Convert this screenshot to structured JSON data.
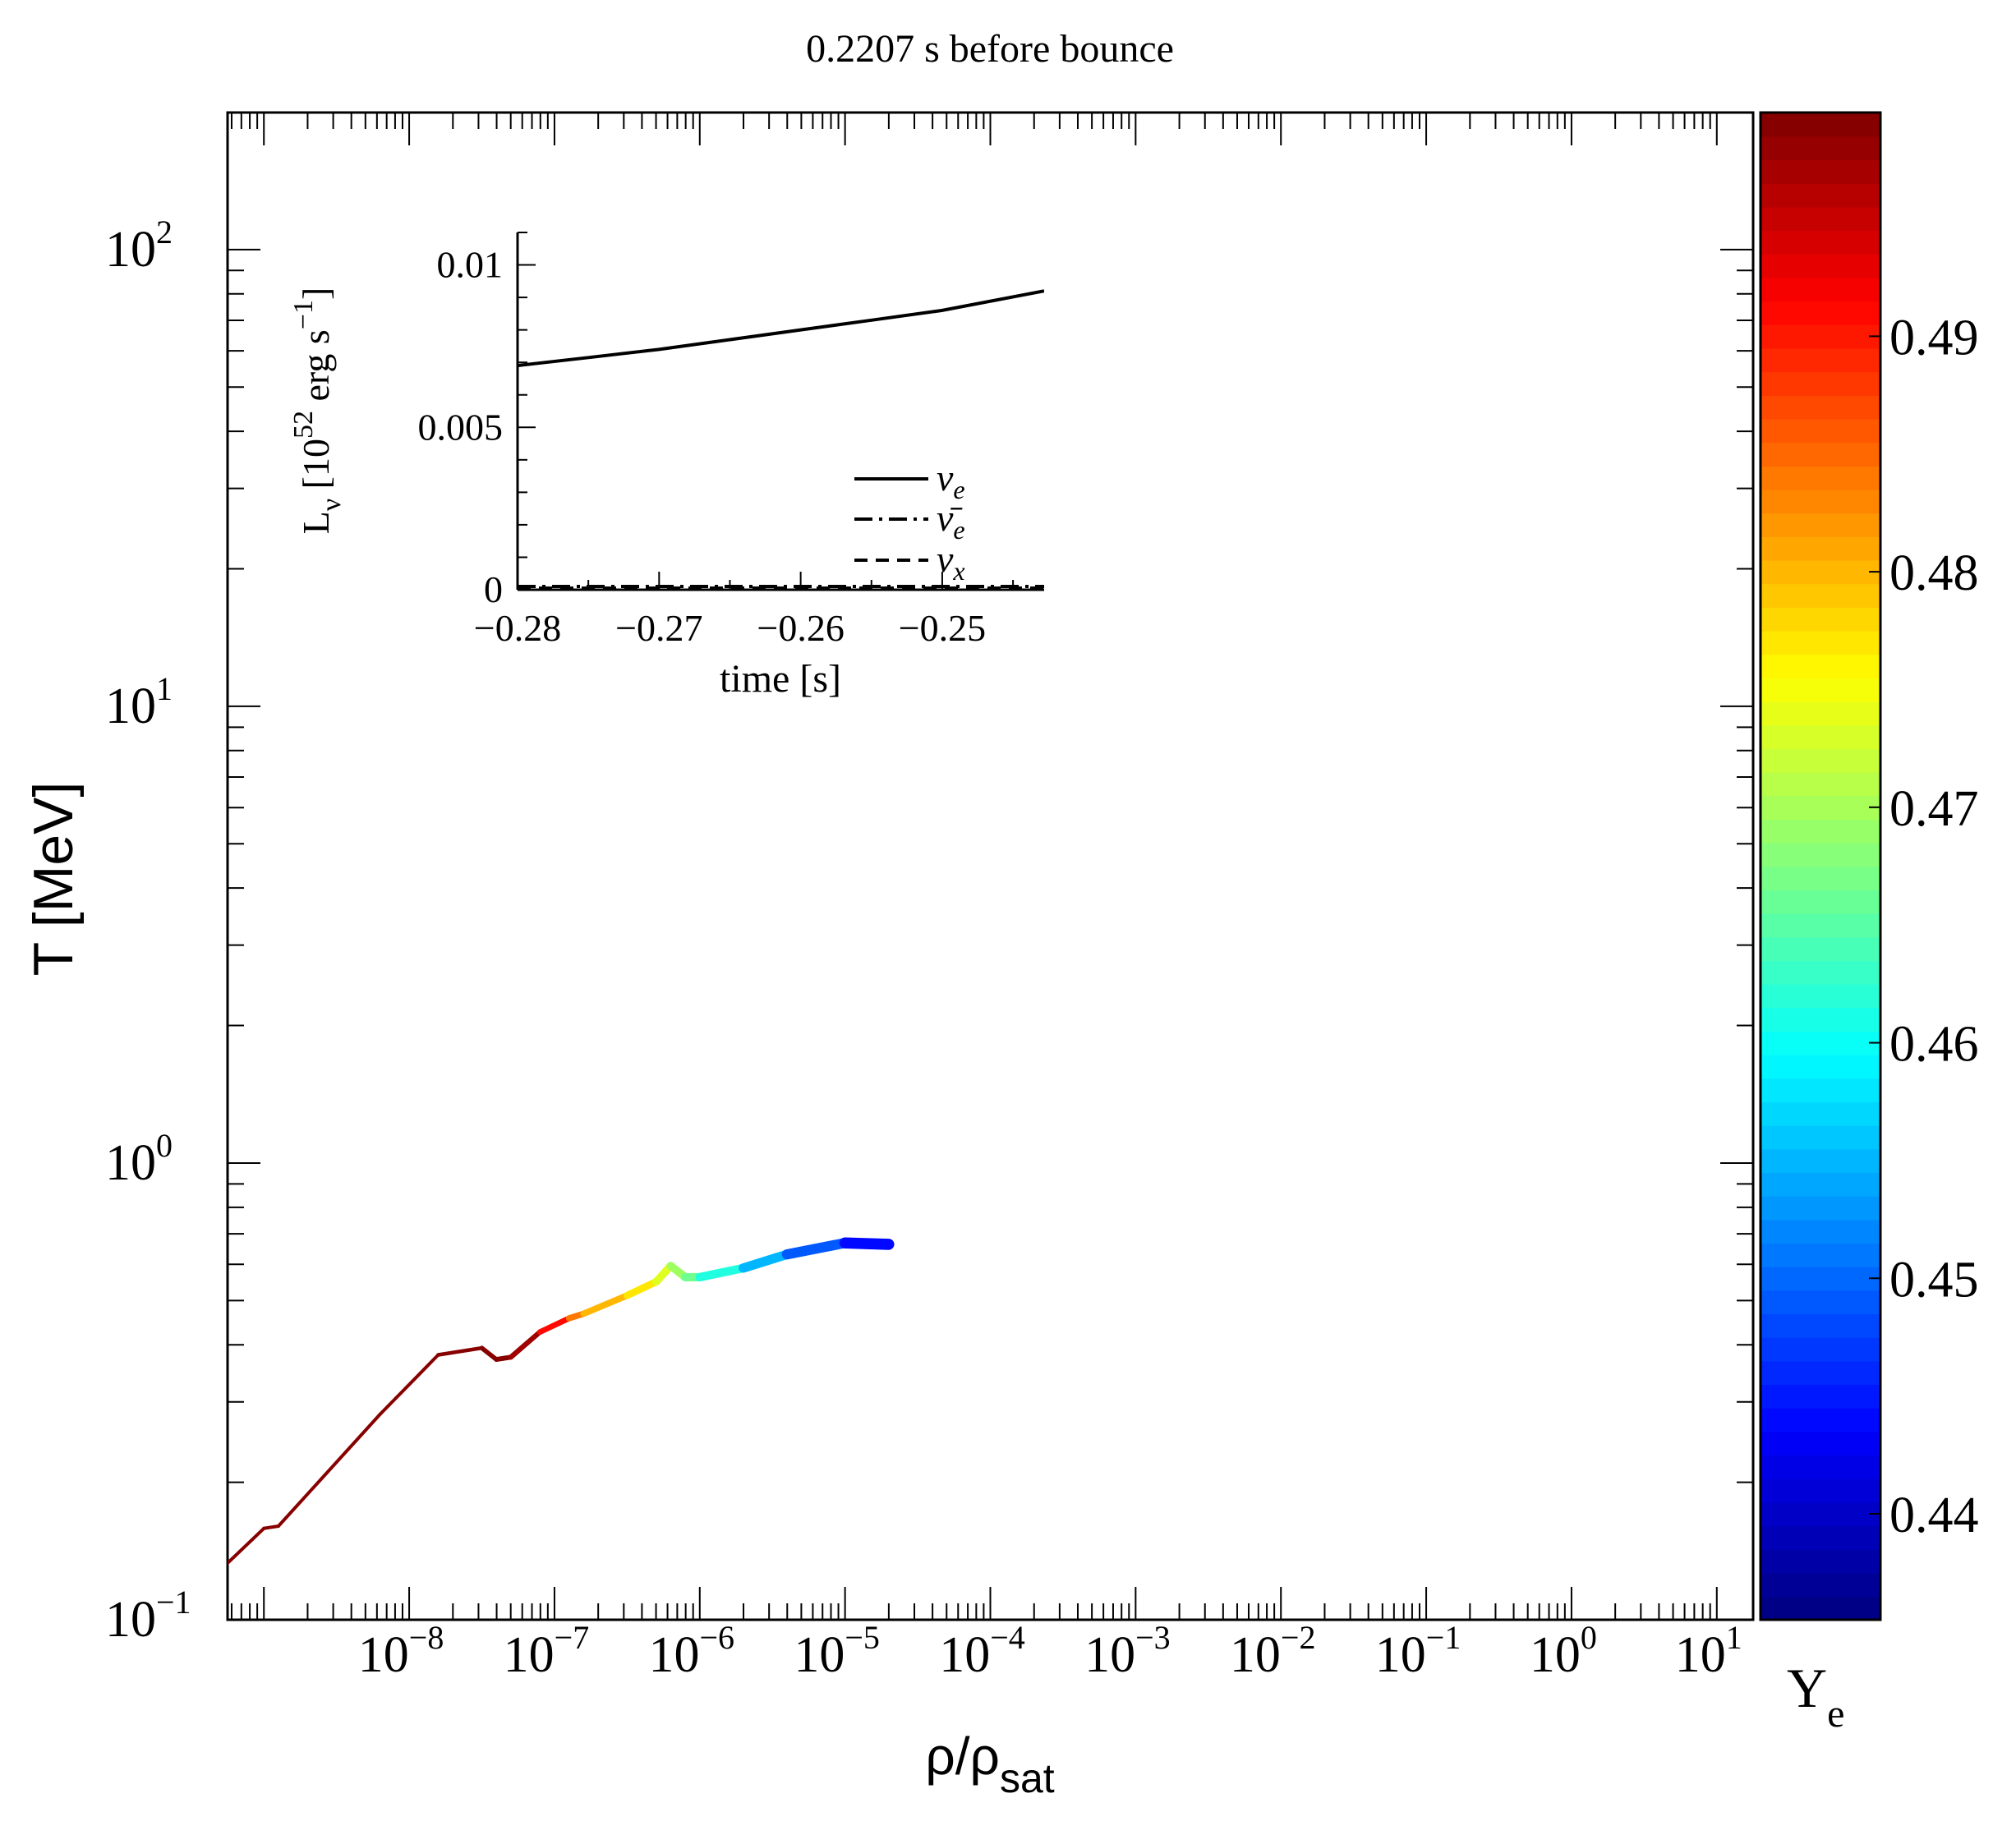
{
  "title": "0.2207 s before bounce",
  "chart_data": [
    {
      "type": "line",
      "title": "0.2207 s before bounce",
      "xlabel": "ρ/ρ",
      "xlabel_sub": "sat",
      "ylabel": "T [MeV]",
      "xscale": "log",
      "yscale": "log",
      "xlim_log10": [
        -9.25,
        1.25
      ],
      "ylim_log10": [
        -1,
        2.3
      ],
      "x_ticks": [
        {
          "base": "10",
          "exp": "−8",
          "log": -8
        },
        {
          "base": "10",
          "exp": "−7",
          "log": -7
        },
        {
          "base": "10",
          "exp": "−6",
          "log": -6
        },
        {
          "base": "10",
          "exp": "−5",
          "log": -5
        },
        {
          "base": "10",
          "exp": "−4",
          "log": -4
        },
        {
          "base": "10",
          "exp": "−3",
          "log": -3
        },
        {
          "base": "10",
          "exp": "−2",
          "log": -2
        },
        {
          "base": "10",
          "exp": "−1",
          "log": -1
        },
        {
          "base": "10",
          "exp": "0",
          "log": 0
        },
        {
          "base": "10",
          "exp": "1",
          "log": 1
        }
      ],
      "y_ticks": [
        {
          "base": "10",
          "exp": "−1",
          "log": -1
        },
        {
          "base": "10",
          "exp": "0",
          "log": 0
        },
        {
          "base": "10",
          "exp": "1",
          "log": 1
        },
        {
          "base": "10",
          "exp": "2",
          "log": 2
        }
      ],
      "series": [
        {
          "points": [
            {
              "x": -9.25,
              "y": -0.876,
              "ye": 0.499
            },
            {
              "x": -9.0,
              "y": -0.8,
              "ye": 0.499
            },
            {
              "x": -8.9,
              "y": -0.795,
              "ye": 0.499
            },
            {
              "x": -8.6,
              "y": -0.69,
              "ye": 0.499
            },
            {
              "x": -8.2,
              "y": -0.55,
              "ye": 0.499
            },
            {
              "x": -7.8,
              "y": -0.42,
              "ye": 0.499
            },
            {
              "x": -7.5,
              "y": -0.405,
              "ye": 0.499
            },
            {
              "x": -7.4,
              "y": -0.43,
              "ye": 0.499
            },
            {
              "x": -7.3,
              "y": -0.425,
              "ye": 0.499
            },
            {
              "x": -7.1,
              "y": -0.37,
              "ye": 0.496
            },
            {
              "x": -6.9,
              "y": -0.34,
              "ye": 0.486
            },
            {
              "x": -6.8,
              "y": -0.33,
              "ye": 0.482
            },
            {
              "x": -6.5,
              "y": -0.29,
              "ye": 0.478
            },
            {
              "x": -6.3,
              "y": -0.26,
              "ye": 0.476
            },
            {
              "x": -6.2,
              "y": -0.225,
              "ye": 0.471
            },
            {
              "x": -6.1,
              "y": -0.25,
              "ye": 0.468
            },
            {
              "x": -6.0,
              "y": -0.25,
              "ye": 0.465
            },
            {
              "x": -5.7,
              "y": -0.23,
              "ye": 0.458
            },
            {
              "x": -5.4,
              "y": -0.2,
              "ye": 0.452
            },
            {
              "x": -5.0,
              "y": -0.175,
              "ye": 0.446
            },
            {
              "x": -4.7,
              "y": -0.178,
              "ye": 0.442
            }
          ]
        }
      ]
    },
    {
      "type": "line",
      "xlabel": "time [s]",
      "ylabel": "L",
      "ylabel_sub": "ν",
      "ylabel_rest": " [10",
      "ylabel_exp": "52",
      "ylabel_tail": " erg s",
      "ylabel_exp2": "−1",
      "ylabel_close": "]",
      "xlim": [
        -0.28,
        -0.2428
      ],
      "ylim": [
        0,
        0.011
      ],
      "x_tick_labels": [
        {
          "label": "−0.28",
          "v": -0.28
        },
        {
          "label": "−0.27",
          "v": -0.27
        },
        {
          "label": "−0.26",
          "v": -0.26
        },
        {
          "label": "−0.25",
          "v": -0.25
        }
      ],
      "y_tick_labels": [
        {
          "label": "0",
          "v": 0
        },
        {
          "label": "0.005",
          "v": 0.005
        },
        {
          "label": "0.01",
          "v": 0.01
        }
      ],
      "legend": {
        "placement": "bottom-right"
      },
      "series": [
        {
          "name": "ν",
          "sub": "e",
          "style": "solid",
          "x": [
            -0.28,
            -0.275,
            -0.27,
            -0.265,
            -0.26,
            -0.255,
            -0.25,
            -0.2428
          ],
          "y": [
            0.0069,
            0.00715,
            0.0074,
            0.0077,
            0.008,
            0.0083,
            0.0086,
            0.0092
          ]
        },
        {
          "name": "ν̄",
          "sub": "e",
          "style": "dashdot",
          "x": [
            -0.28,
            -0.2428
          ],
          "y": [
            0.0001,
            0.0001
          ]
        },
        {
          "name": "ν",
          "sub": "x",
          "style": "dashed",
          "x": [
            -0.28,
            -0.2428
          ],
          "y": [
            5e-05,
            5e-05
          ]
        }
      ]
    }
  ],
  "colorbar": {
    "label": "Y",
    "label_sub": "e",
    "range": [
      0.4355,
      0.4995
    ],
    "ticks": [
      {
        "label": "0.44",
        "v": 0.44
      },
      {
        "label": "0.45",
        "v": 0.45
      },
      {
        "label": "0.46",
        "v": 0.46
      },
      {
        "label": "0.47",
        "v": 0.47
      },
      {
        "label": "0.48",
        "v": 0.48
      },
      {
        "label": "0.49",
        "v": 0.49
      }
    ],
    "colormap": "jet"
  }
}
